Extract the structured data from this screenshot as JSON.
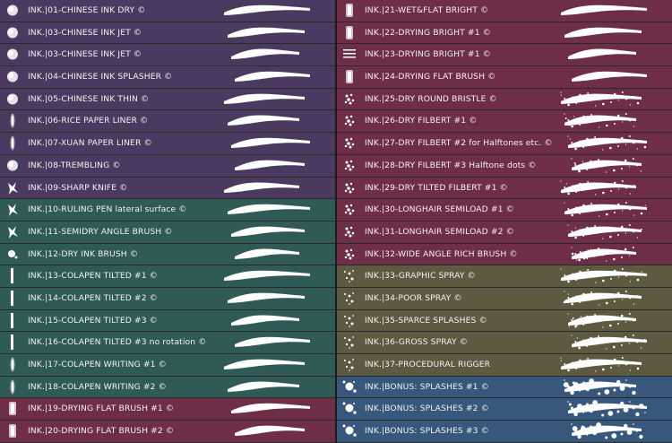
{
  "colors": {
    "purple": "#4b3a5f",
    "teal": "#2f5a55",
    "maroon": "#6e2e47",
    "olive": "#5e5a42",
    "blue": "#37577c",
    "text": "#f2f2f2"
  },
  "left_brushes": [
    {
      "label": "INK.|01-CHINESE INK DRY ©",
      "group": "purple",
      "thumb": "round"
    },
    {
      "label": "INK.|03-CHINESE INK JET ©",
      "group": "purple",
      "thumb": "round"
    },
    {
      "label": "INK.|03-CHINESE INK JET ©",
      "group": "purple",
      "thumb": "round"
    },
    {
      "label": "INK.|04-CHINESE INK SPLASHER ©",
      "group": "purple",
      "thumb": "round"
    },
    {
      "label": "INK.|05-CHINESE INK THIN ©",
      "group": "purple",
      "thumb": "round"
    },
    {
      "label": "INK.|06-RICE PAPER LINER ©",
      "group": "purple",
      "thumb": "soft"
    },
    {
      "label": "INK.|07-XUAN PAPER LINER ©",
      "group": "purple",
      "thumb": "soft"
    },
    {
      "label": "INK.|08-TREMBLING ©",
      "group": "purple",
      "thumb": "round"
    },
    {
      "label": "INK.|09-SHARP KNIFE ©",
      "group": "purple",
      "thumb": "splat"
    },
    {
      "label": "INK.|10-RULING PEN lateral surface ©",
      "group": "teal",
      "thumb": "splat"
    },
    {
      "label": "INK.|11-SEMIDRY ANGLE BRUSH ©",
      "group": "teal",
      "thumb": "splat"
    },
    {
      "label": "INK.|12-DRY INK BRUSH ©",
      "group": "teal",
      "thumb": "dot"
    },
    {
      "label": "INK.|13-COLAPEN TILTED #1 ©",
      "group": "teal",
      "thumb": "bar"
    },
    {
      "label": "INK.|14-COLAPEN TILTED #2 ©",
      "group": "teal",
      "thumb": "bar"
    },
    {
      "label": "INK.|15-COLAPEN TILTED #3 ©",
      "group": "teal",
      "thumb": "bar"
    },
    {
      "label": "INK.|16-COLAPEN TILTED #3 no rotation ©",
      "group": "teal",
      "thumb": "bar"
    },
    {
      "label": "INK.|17-COLAPEN WRITING #1 ©",
      "group": "teal",
      "thumb": "soft"
    },
    {
      "label": "INK.|18-COLAPEN WRITING #2 ©",
      "group": "teal",
      "thumb": "soft"
    },
    {
      "label": "INK.|19-DRYING FLAT BRUSH #1 ©",
      "group": "maroon",
      "thumb": "flat"
    },
    {
      "label": "INK.|20-DRYING FLAT BRUSH #2 ©",
      "group": "maroon",
      "thumb": "flat"
    }
  ],
  "right_brushes": [
    {
      "label": "INK.|21-WET&FLAT BRIGHT ©",
      "group": "maroon",
      "thumb": "flat"
    },
    {
      "label": "INK.|22-DRYING BRIGHT #1 ©",
      "group": "maroon",
      "thumb": "flat"
    },
    {
      "label": "INK.|23-DRYING BRIGHT #1 ©",
      "group": "maroon",
      "thumb": "lines"
    },
    {
      "label": "INK.|24-DRYING FLAT BRUSH ©",
      "group": "maroon",
      "thumb": "flat"
    },
    {
      "label": "INK.|25-DRY ROUND BRISTLE ©",
      "group": "maroon",
      "thumb": "speck"
    },
    {
      "label": "INK.|26-DRY FILBERT #1 ©",
      "group": "maroon",
      "thumb": "speck"
    },
    {
      "label": "INK.|27-DRY FILBERT #2 for Halftones etc. ©",
      "group": "maroon",
      "thumb": "speck"
    },
    {
      "label": "INK.|28-DRY FILBERT #3 Halftone dots ©",
      "group": "maroon",
      "thumb": "speck"
    },
    {
      "label": "INK.|29-DRY TILTED FILBERT #1 ©",
      "group": "maroon",
      "thumb": "speck"
    },
    {
      "label": "INK.|30-LONGHAIR SEMILOAD #1 ©",
      "group": "maroon",
      "thumb": "speck"
    },
    {
      "label": "INK.|31-LONGHAIR SEMILOAD #2 ©",
      "group": "maroon",
      "thumb": "speck"
    },
    {
      "label": "INK.|32-WIDE ANGLE RICH BRUSH ©",
      "group": "maroon",
      "thumb": "speck"
    },
    {
      "label": "INK.|33-GRAPHIC SPRAY ©",
      "group": "olive",
      "thumb": "spray"
    },
    {
      "label": "INK.|34-POOR SPRAY ©",
      "group": "olive",
      "thumb": "spray"
    },
    {
      "label": "INK.|35-SPARCE SPLASHES ©",
      "group": "olive",
      "thumb": "spray"
    },
    {
      "label": "INK.|36-GROSS SPRAY ©",
      "group": "olive",
      "thumb": "spray"
    },
    {
      "label": "INK.|37-PROCEDURAL RIGGER",
      "group": "olive",
      "thumb": "spray"
    },
    {
      "label": "INK.|BONUS: SPLASHES #1 ©",
      "group": "blue",
      "thumb": "splash"
    },
    {
      "label": "INK.|BONUS: SPLASHES #2 ©",
      "group": "blue",
      "thumb": "splash"
    },
    {
      "label": "INK.|BONUS: SPLASHES #3 ©",
      "group": "blue",
      "thumb": "splash"
    }
  ]
}
